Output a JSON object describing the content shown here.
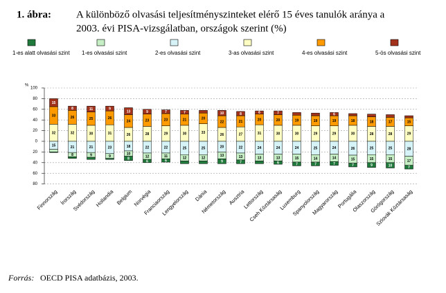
{
  "chart_data": {
    "type": "diverging_stacked_bar",
    "figure_label": "1. ábra:",
    "title": [
      "A különböző olvasási teljesítményszinteket elérő 15 éves tanulók aránya a",
      "2003. évi PISA-vizsgálatban, országok szerint (%)"
    ],
    "y_label": "%",
    "source_label": "Forrás:",
    "source": "OECD PISA adatbázis, 2003.",
    "categories": [
      "Finnország",
      "Írország",
      "Svédország",
      "Hollandia",
      "Belgium",
      "Norvégia",
      "Franciaország",
      "Lengyelország",
      "Dánia",
      "Németország",
      "Ausztria",
      "Lettország",
      "Cseh Köztársaság",
      "Luxemburg",
      "Spanyolország",
      "Magyarország",
      "Portugália",
      "Olaszország",
      "Görögország",
      "Szlovák Köztársaság"
    ],
    "ylim": [
      -80,
      100
    ],
    "yticks": [
      100,
      80,
      60,
      40,
      20,
      0,
      {
        "value": -20,
        "label": "20"
      },
      {
        "value": -40,
        "label": "40"
      },
      {
        "value": -60,
        "label": "60"
      },
      {
        "value": -80,
        "label": "80"
      }
    ],
    "grid": true,
    "legend": "top",
    "series": [
      {
        "name": "1-es alatt olvasási szint",
        "color": "#1f7a3c",
        "values": [
          -1,
          -3,
          -4,
          -2,
          -8,
          -6,
          -6,
          -5,
          -5,
          -9,
          -7,
          -5,
          -6,
          -7,
          -7,
          -7,
          -7,
          -9,
          -10,
          -7
        ],
        "value_labels": [
          "1",
          "3",
          "4",
          "2",
          "8",
          "6",
          "6",
          "5",
          "5",
          "9",
          "7",
          "5",
          "6",
          "7",
          "7",
          "7",
          "7",
          "9",
          "10",
          "7"
        ]
      },
      {
        "name": "1-es olvasási szint",
        "color": "#c6efc6",
        "values": [
          -5,
          -8,
          -9,
          -9,
          -10,
          -12,
          -11,
          -12,
          -12,
          -13,
          -13,
          -13,
          -13,
          -15,
          -14,
          -14,
          -15,
          -15,
          -15,
          -17
        ],
        "value_labels": [
          "5",
          "8",
          "9",
          "9",
          "10",
          "12",
          "11",
          "12",
          "12",
          "13",
          "13",
          "13",
          "13",
          "15",
          "14",
          "14",
          "15",
          "15",
          "15",
          "17"
        ]
      },
      {
        "name": "2-es olvasási szint",
        "color": "#d6f3f8",
        "values": [
          -15,
          -21,
          -21,
          -23,
          -18,
          -22,
          -22,
          -25,
          -25,
          -20,
          -22,
          -24,
          -24,
          -24,
          -25,
          -24,
          -26,
          -25,
          -25,
          -28
        ],
        "value_labels": [
          "15",
          "21",
          "21",
          "23",
          "18",
          "22",
          "22",
          "25",
          "25",
          "20",
          "22",
          "24",
          "24",
          "24",
          "25",
          "24",
          "26",
          "25",
          "25",
          "28"
        ]
      },
      {
        "name": "3-as olvasási szint",
        "color": "#ffffc4",
        "values": [
          32,
          32,
          30,
          31,
          26,
          28,
          29,
          30,
          33,
          26,
          27,
          31,
          30,
          30,
          29,
          29,
          30,
          28,
          28,
          29
        ]
      },
      {
        "name": "4-es olvasási szint",
        "color": "#ff9a00",
        "values": [
          33,
          26,
          25,
          26,
          24,
          23,
          23,
          21,
          20,
          22,
          21,
          20,
          20,
          19,
          19,
          19,
          18,
          18,
          17,
          15
        ]
      },
      {
        "name": "5-ös olvasási szint",
        "color": "#a3321c",
        "values": [
          15,
          8,
          11,
          9,
          13,
          9,
          7,
          7,
          5,
          10,
          8,
          6,
          7,
          5,
          5,
          6,
          4,
          5,
          5,
          4
        ]
      }
    ]
  }
}
